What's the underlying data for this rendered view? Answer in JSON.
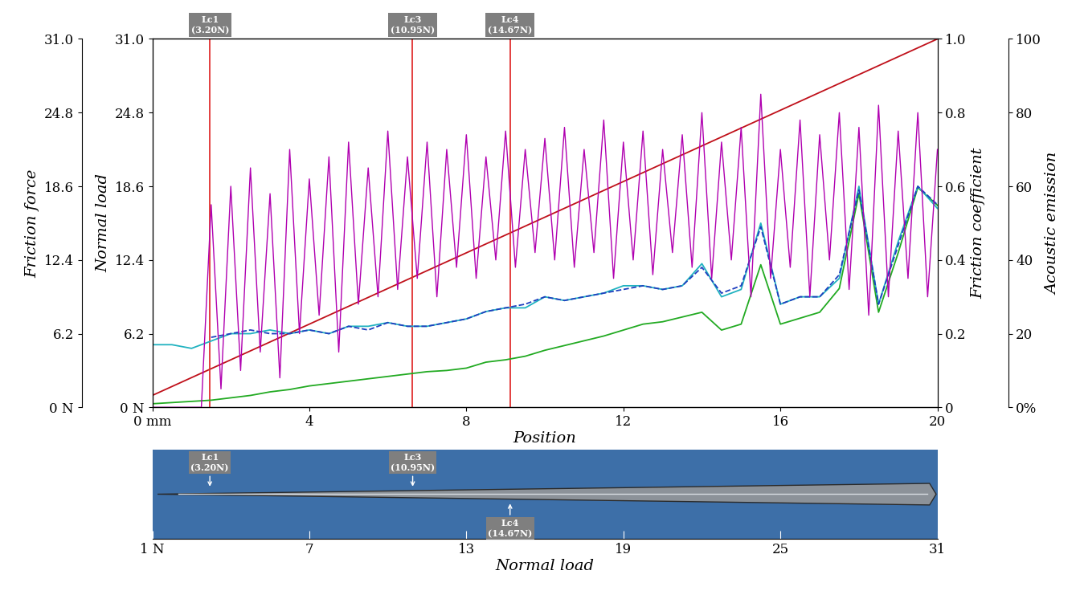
{
  "chart_data": [
    {
      "type": "line",
      "xlabel": "Position",
      "xlim": [
        0,
        20
      ],
      "xticks": [
        {
          "value": 0,
          "label": "0 mm"
        },
        4,
        8,
        12,
        16,
        20
      ],
      "axes": [
        {
          "label": "Friction force",
          "lim": [
            0,
            31
          ],
          "ticks": [
            {
              "value": 0,
              "label": "0 N"
            },
            6.2,
            12.4,
            18.6,
            24.8,
            {
              "value": 31,
              "label": "31.0"
            }
          ]
        },
        {
          "label": "Normal load",
          "lim": [
            0,
            31
          ],
          "ticks": [
            {
              "value": 0,
              "label": "0 N"
            },
            6.2,
            12.4,
            18.6,
            24.8,
            {
              "value": 31,
              "label": "31.0"
            }
          ]
        },
        {
          "label": "Friction coefficient",
          "lim": [
            0,
            1
          ],
          "ticks": [
            0,
            0.2,
            0.4,
            0.6,
            0.8,
            {
              "value": 1,
              "label": "1.0"
            }
          ]
        },
        {
          "label": "Acoustic emission",
          "lim": [
            0,
            100
          ],
          "ticks": [
            {
              "value": 0,
              "label": "0%"
            },
            20,
            40,
            60,
            80,
            100
          ]
        }
      ],
      "series": [
        {
          "name": "Acoustic emission",
          "axis": "Acoustic emission",
          "color": "#b000b0",
          "line_style": "solid",
          "x": [
            0,
            0.25,
            0.5,
            0.75,
            1,
            1.25,
            1.5,
            1.75,
            2,
            2.25,
            2.5,
            2.75,
            3,
            3.25,
            3.5,
            3.75,
            4,
            4.25,
            4.5,
            4.75,
            5,
            5.25,
            5.5,
            5.75,
            6,
            6.25,
            6.5,
            6.75,
            7,
            7.25,
            7.5,
            7.75,
            8,
            8.25,
            8.5,
            8.75,
            9,
            9.25,
            9.5,
            9.75,
            10,
            10.25,
            10.5,
            10.75,
            11,
            11.25,
            11.5,
            11.75,
            12,
            12.25,
            12.5,
            12.75,
            13,
            13.25,
            13.5,
            13.75,
            14,
            14.25,
            14.5,
            14.75,
            15,
            15.25,
            15.5,
            15.75,
            16,
            16.25,
            16.5,
            16.75,
            17,
            17.25,
            17.5,
            17.75,
            18,
            18.25,
            18.5,
            18.75,
            19,
            19.25,
            19.5,
            19.75,
            20
          ],
          "values": [
            0,
            0,
            0,
            0,
            0,
            0,
            55,
            5,
            60,
            10,
            65,
            15,
            58,
            8,
            70,
            20,
            62,
            25,
            68,
            15,
            72,
            28,
            65,
            30,
            75,
            32,
            68,
            35,
            72,
            30,
            70,
            38,
            74,
            35,
            68,
            40,
            75,
            38,
            70,
            42,
            73,
            40,
            76,
            38,
            70,
            42,
            78,
            35,
            72,
            40,
            75,
            36,
            70,
            42,
            74,
            38,
            80,
            35,
            72,
            40,
            76,
            30,
            85,
            35,
            70,
            38,
            78,
            30,
            74,
            40,
            80,
            32,
            76,
            25,
            82,
            30,
            75,
            35,
            80,
            30,
            70
          ]
        },
        {
          "name": "Friction coefficient",
          "axis": "Friction coefficient",
          "color": "#20b2c0",
          "line_style": "solid",
          "x": [
            0,
            0.5,
            1,
            1.5,
            2,
            2.5,
            3,
            3.5,
            4,
            4.5,
            5,
            5.5,
            6,
            6.5,
            7,
            7.5,
            8,
            8.5,
            9,
            9.5,
            10,
            10.5,
            11,
            11.5,
            12,
            12.5,
            13,
            13.5,
            14,
            14.5,
            15,
            15.5,
            16,
            16.5,
            17,
            17.5,
            18,
            18.5,
            19,
            19.5,
            20
          ],
          "values": [
            0.17,
            0.17,
            0.16,
            0.18,
            0.2,
            0.2,
            0.21,
            0.2,
            0.21,
            0.2,
            0.22,
            0.22,
            0.23,
            0.22,
            0.22,
            0.23,
            0.24,
            0.26,
            0.27,
            0.27,
            0.3,
            0.29,
            0.3,
            0.31,
            0.33,
            0.33,
            0.32,
            0.33,
            0.39,
            0.3,
            0.32,
            0.5,
            0.28,
            0.3,
            0.3,
            0.35,
            0.6,
            0.28,
            0.45,
            0.6,
            0.54
          ]
        },
        {
          "axis": "Friction coefficient",
          "color": "#1f3fbf",
          "line_style": "dashed",
          "x": [
            1.5,
            2,
            2.5,
            3,
            3.5,
            4,
            4.5,
            5,
            5.5,
            6,
            6.5,
            7,
            7.5,
            8,
            8.5,
            9,
            9.5,
            10,
            10.5,
            11,
            11.5,
            12,
            12.5,
            13,
            13.5,
            14,
            14.5,
            15,
            15.5,
            16,
            16.5,
            17,
            17.5,
            18,
            18.5,
            19,
            19.5,
            20
          ],
          "values": [
            0.19,
            0.2,
            0.21,
            0.2,
            0.2,
            0.21,
            0.2,
            0.22,
            0.21,
            0.23,
            0.22,
            0.22,
            0.23,
            0.24,
            0.26,
            0.27,
            0.28,
            0.3,
            0.29,
            0.3,
            0.31,
            0.32,
            0.33,
            0.32,
            0.33,
            0.38,
            0.31,
            0.33,
            0.49,
            0.28,
            0.3,
            0.3,
            0.36,
            0.59,
            0.28,
            0.44,
            0.6,
            0.55
          ]
        },
        {
          "name": "Friction force",
          "axis": "Friction force",
          "color": "#22aa22",
          "line_style": "solid",
          "x": [
            0,
            0.5,
            1,
            1.5,
            2,
            2.5,
            3,
            3.5,
            4,
            4.5,
            5,
            5.5,
            6,
            6.5,
            7,
            7.5,
            8,
            8.5,
            9,
            9.5,
            10,
            10.5,
            11,
            11.5,
            12,
            12.5,
            13,
            13.5,
            14,
            14.5,
            15,
            15.5,
            16,
            16.5,
            17,
            17.5,
            18,
            18.5,
            19,
            19.5,
            20
          ],
          "values": [
            0.3,
            0.4,
            0.5,
            0.6,
            0.8,
            1.0,
            1.3,
            1.5,
            1.8,
            2.0,
            2.2,
            2.4,
            2.6,
            2.8,
            3.0,
            3.1,
            3.3,
            3.8,
            4.0,
            4.3,
            4.8,
            5.2,
            5.6,
            6.0,
            6.5,
            7.0,
            7.2,
            7.6,
            8.0,
            6.5,
            7.0,
            12.0,
            7.0,
            7.5,
            8.0,
            10.0,
            18.0,
            8.0,
            13.0,
            18.5,
            17.0
          ]
        },
        {
          "name": "Normal load",
          "axis": "Normal load",
          "color": "#c0101a",
          "line_style": "solid",
          "x": [
            0,
            20
          ],
          "values": [
            1,
            31
          ]
        }
      ],
      "critical_loads": [
        {
          "name": "Lc1",
          "load": 3.2,
          "load_label": "(3.20N)",
          "position": 1.47
        },
        {
          "name": "Lc3",
          "load": 10.95,
          "load_label": "(10.95N)",
          "position": 6.63
        },
        {
          "name": "Lc4",
          "load": 14.67,
          "load_label": "(14.67N)",
          "position": 9.11
        }
      ]
    },
    {
      "type": "scratch_track",
      "xlabel": "Normal load",
      "xlim": [
        1,
        31
      ],
      "xticks": [
        {
          "value": 1,
          "label": "1 N"
        },
        7,
        13,
        19,
        25,
        31
      ],
      "critical_loads": [
        {
          "name": "Lc1",
          "load": 3.2,
          "load_label": "(3.20N)"
        },
        {
          "name": "Lc3",
          "load": 10.95,
          "load_label": "(10.95N)"
        },
        {
          "name": "Lc4",
          "load": 14.67,
          "load_label": "(14.67N)"
        }
      ]
    }
  ]
}
